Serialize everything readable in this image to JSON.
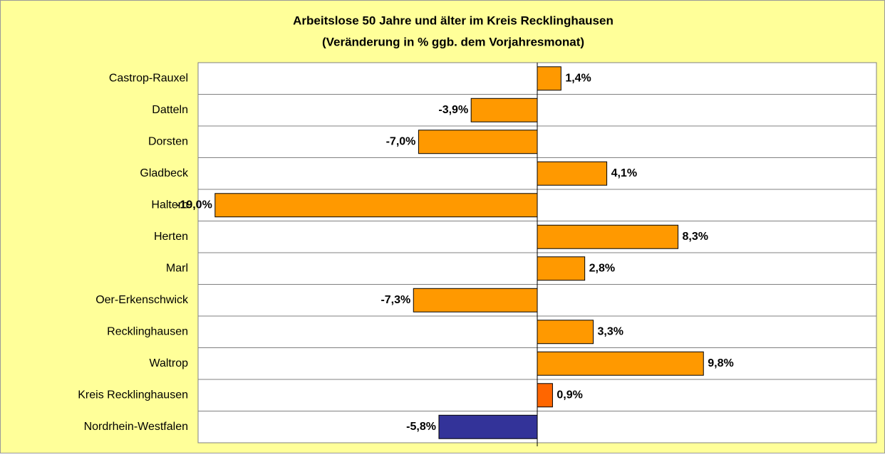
{
  "chart_data": {
    "type": "hbar",
    "title": "Arbeitslose 50 Jahre und älter im Kreis Recklinghausen",
    "subtitle": "(Veränderung in % ggb. dem Vorjahresmonat)",
    "categories": [
      "Castrop-Rauxel",
      "Datteln",
      "Dorsten",
      "Gladbeck",
      "Haltern",
      "Herten",
      "Marl",
      "Oer-Erkenschwick",
      "Recklinghausen",
      "Waltrop",
      "Kreis Recklinghausen",
      "Nordrhein-Westfalen"
    ],
    "values": [
      1.4,
      -3.9,
      -7.0,
      4.1,
      -19.0,
      8.3,
      2.8,
      -7.3,
      3.3,
      9.8,
      0.9,
      -5.8
    ],
    "value_labels": [
      "1,4%",
      "-3,9%",
      "-7,0%",
      "4,1%",
      "-19,0%",
      "8,3%",
      "2,8%",
      "-7,3%",
      "3,3%",
      "9,8%",
      "0,9%",
      "-5,8%"
    ],
    "colors": [
      "#ff9900",
      "#ff9900",
      "#ff9900",
      "#ff9900",
      "#ff9900",
      "#ff9900",
      "#ff9900",
      "#ff9900",
      "#ff9900",
      "#ff9900",
      "#ff6600",
      "#333399"
    ],
    "xlim": [
      -20,
      20
    ]
  }
}
